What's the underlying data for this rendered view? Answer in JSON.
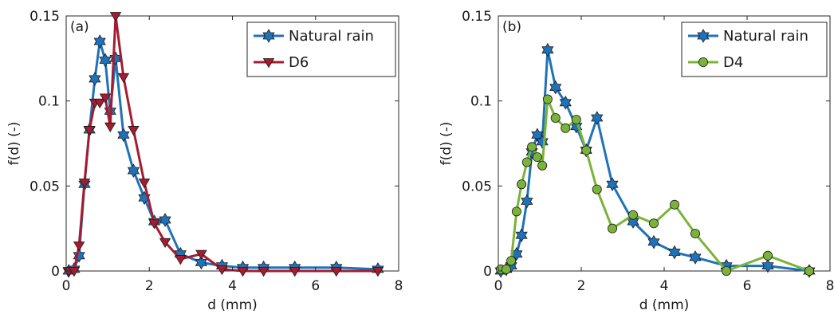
{
  "chart_data": [
    {
      "type": "line",
      "panel_label": "(a)",
      "xlabel": "d (mm)",
      "ylabel": "f(d) (-)",
      "xlim": [
        0,
        8
      ],
      "ylim": [
        0,
        0.15
      ],
      "xticks": [
        0,
        2,
        4,
        6,
        8
      ],
      "yticks": [
        0,
        0.05,
        0.1,
        0.15
      ],
      "xtick_labels": [
        "0",
        "2",
        "4",
        "6",
        "8"
      ],
      "ytick_labels": [
        "0",
        "0.05",
        "0.1",
        "0.15"
      ],
      "grid": false,
      "legend_position": "top-right",
      "series": [
        {
          "name": "Natural rain",
          "color": "#1f72b8",
          "marker": "hexagram",
          "x": [
            0.06,
            0.19,
            0.31,
            0.44,
            0.56,
            0.69,
            0.81,
            0.94,
            1.06,
            1.19,
            1.38,
            1.62,
            1.88,
            2.12,
            2.38,
            2.75,
            3.25,
            3.75,
            4.25,
            4.75,
            5.5,
            6.5,
            7.5
          ],
          "y": [
            0.0,
            0.001,
            0.009,
            0.051,
            0.083,
            0.113,
            0.135,
            0.124,
            0.094,
            0.125,
            0.08,
            0.059,
            0.043,
            0.029,
            0.03,
            0.01,
            0.005,
            0.003,
            0.002,
            0.002,
            0.002,
            0.002,
            0.001
          ]
        },
        {
          "name": "D6",
          "color": "#a51c30",
          "marker": "triangle-down",
          "x": [
            0.06,
            0.19,
            0.31,
            0.44,
            0.56,
            0.69,
            0.81,
            0.94,
            1.06,
            1.19,
            1.38,
            1.62,
            1.88,
            2.12,
            2.38,
            2.75,
            3.25,
            3.75,
            4.25,
            4.75,
            5.5,
            6.5,
            7.5
          ],
          "y": [
            0.0,
            0.0,
            0.015,
            0.052,
            0.083,
            0.099,
            0.099,
            0.102,
            0.085,
            0.15,
            0.114,
            0.083,
            0.052,
            0.028,
            0.017,
            0.007,
            0.01,
            0.001,
            0.0,
            0.0,
            0.0,
            0.0,
            0.0
          ]
        }
      ]
    },
    {
      "type": "line",
      "panel_label": "(b)",
      "xlabel": "d (mm)",
      "ylabel": "f(d) (-)",
      "xlim": [
        0,
        8
      ],
      "ylim": [
        0,
        0.15
      ],
      "xticks": [
        0,
        2,
        4,
        6,
        8
      ],
      "yticks": [
        0,
        0.05,
        0.1,
        0.15
      ],
      "xtick_labels": [
        "0",
        "2",
        "4",
        "6",
        "8"
      ],
      "ytick_labels": [
        "0",
        "0.05",
        "0.1",
        "0.15"
      ],
      "grid": false,
      "legend_position": "top-right",
      "series": [
        {
          "name": "Natural rain",
          "color": "#1f72b8",
          "marker": "hexagram",
          "x": [
            0.06,
            0.19,
            0.31,
            0.44,
            0.56,
            0.69,
            0.81,
            0.94,
            1.06,
            1.19,
            1.38,
            1.62,
            1.88,
            2.12,
            2.38,
            2.75,
            3.25,
            3.75,
            4.25,
            4.75,
            5.5,
            6.5,
            7.5
          ],
          "y": [
            0.0,
            0.001,
            0.003,
            0.01,
            0.021,
            0.041,
            0.07,
            0.08,
            0.076,
            0.13,
            0.108,
            0.099,
            0.085,
            0.071,
            0.09,
            0.051,
            0.029,
            0.017,
            0.011,
            0.008,
            0.003,
            0.003,
            0.0
          ]
        },
        {
          "name": "D4",
          "color": "#7bb33a",
          "marker": "circle",
          "x": [
            0.06,
            0.19,
            0.31,
            0.44,
            0.56,
            0.69,
            0.81,
            0.94,
            1.06,
            1.19,
            1.38,
            1.62,
            1.88,
            2.12,
            2.38,
            2.75,
            3.25,
            3.75,
            4.25,
            4.75,
            5.5,
            6.5,
            7.5
          ],
          "y": [
            0.001,
            0.001,
            0.006,
            0.035,
            0.051,
            0.064,
            0.073,
            0.067,
            0.062,
            0.101,
            0.09,
            0.084,
            0.089,
            0.071,
            0.048,
            0.025,
            0.033,
            0.028,
            0.039,
            0.022,
            0.0,
            0.009,
            0.0
          ]
        }
      ]
    }
  ]
}
